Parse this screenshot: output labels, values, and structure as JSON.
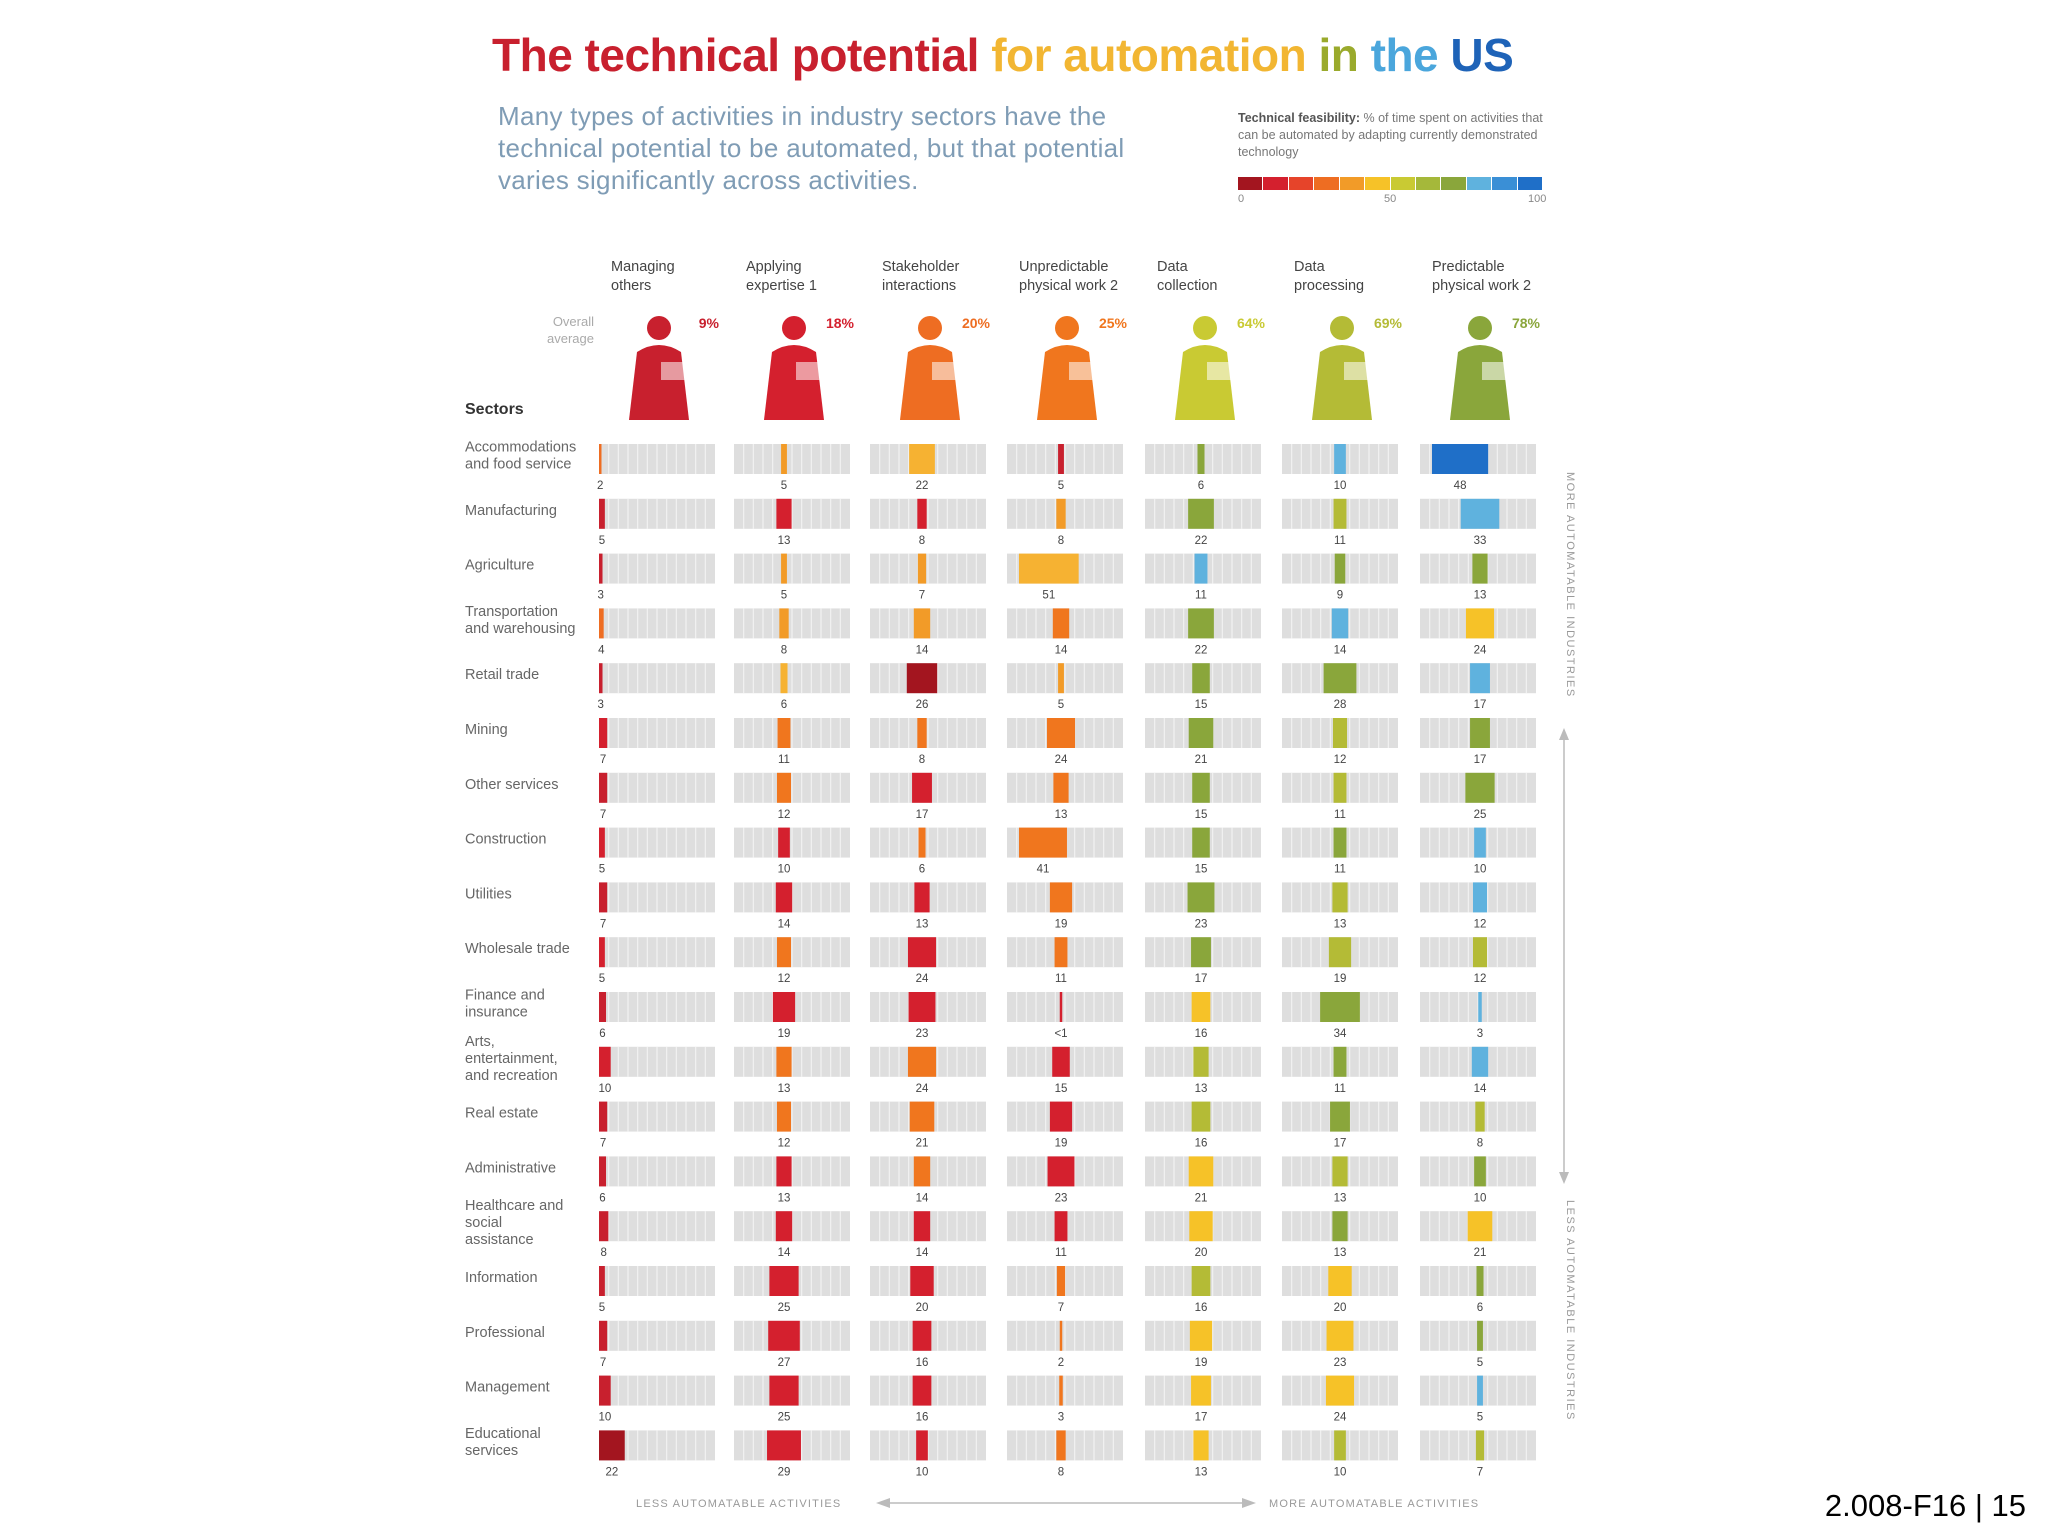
{
  "title_parts": [
    {
      "text": "The technical potential ",
      "color": "#c8202e"
    },
    {
      "text": "for automation ",
      "color": "#f2b632"
    },
    {
      "text": "in ",
      "color": "#9aaa2c"
    },
    {
      "text": "the ",
      "color": "#4aa6dc"
    },
    {
      "text": "US",
      "color": "#1e63b8"
    }
  ],
  "subtitle": "Many types of activities in industry sectors have the technical potential to be automated, but that potential varies significantly across activities.",
  "scale": {
    "label_bold": "Technical feasibility:",
    "label": " % of time spent on activities that can be automated by adapting currently demonstrated technology",
    "min": "0",
    "mid": "50",
    "max": "100",
    "colors": [
      "#a3151f",
      "#d4202e",
      "#e6442a",
      "#ee6d22",
      "#f29b28",
      "#f6c228",
      "#c9ca33",
      "#a5b83a",
      "#8aa63b",
      "#5fb2de",
      "#3a8fd6",
      "#1f6fc8"
    ]
  },
  "overall_average_label": "Overall average",
  "sectors_label": "Sectors",
  "right_axis": {
    "top": "MORE AUTOMATABLE INDUSTRIES",
    "bottom": "LESS AUTOMATABLE INDUSTRIES"
  },
  "bottom_axis": {
    "left": "LESS AUTOMATABLE ACTIVITIES",
    "right": "MORE AUTOMATABLE ACTIVITIES"
  },
  "page_number": "2.008-F16 | 15",
  "chart_data": {
    "type": "table",
    "value_unit": "%",
    "activities": [
      {
        "name": "Managing others",
        "sup": "",
        "average": "9%",
        "color": "#c8202e",
        "icon": "manager-icon"
      },
      {
        "name": "Applying expertise",
        "sup": "1",
        "average": "18%",
        "color": "#d4202e",
        "icon": "scientist-microscope-icon"
      },
      {
        "name": "Stakeholder interactions",
        "sup": "",
        "average": "20%",
        "color": "#ee6d22",
        "icon": "waiter-icon"
      },
      {
        "name": "Unpredictable physical work",
        "sup": "2",
        "average": "25%",
        "color": "#f0761e",
        "icon": "chainsaw-worker-icon"
      },
      {
        "name": "Data collection",
        "sup": "",
        "average": "64%",
        "color": "#c9ca33",
        "icon": "clerk-collecting-data-icon"
      },
      {
        "name": "Data processing",
        "sup": "",
        "average": "69%",
        "color": "#b4bb36",
        "icon": "worker-at-computer-icon"
      },
      {
        "name": "Predictable physical work",
        "sup": "2",
        "average": "78%",
        "color": "#8aa63b",
        "icon": "machine-operator-icon"
      }
    ],
    "sectors": [
      {
        "name": "Accommodations and food service",
        "values": [
          "2",
          "5",
          "22",
          "5",
          "6",
          "10",
          "48"
        ],
        "colors": [
          "#ee6d22",
          "#f29b28",
          "#f6b232",
          "#c8202e",
          "#8aa63b",
          "#5fb2de",
          "#1f6fc8"
        ]
      },
      {
        "name": "Manufacturing",
        "values": [
          "5",
          "13",
          "8",
          "8",
          "22",
          "11",
          "33"
        ],
        "colors": [
          "#c8202e",
          "#d4202e",
          "#d4202e",
          "#f29b28",
          "#8aa63b",
          "#b4bb36",
          "#5fb2de"
        ]
      },
      {
        "name": "Agriculture",
        "values": [
          "3",
          "5",
          "7",
          "51",
          "11",
          "9",
          "13"
        ],
        "colors": [
          "#c8202e",
          "#f29b28",
          "#f29b28",
          "#f6b232",
          "#5fb2de",
          "#8aa63b",
          "#8aa63b"
        ]
      },
      {
        "name": "Transportation and warehousing",
        "values": [
          "4",
          "8",
          "14",
          "14",
          "22",
          "14",
          "24"
        ],
        "colors": [
          "#ee6d22",
          "#f29b28",
          "#f29b28",
          "#f0761e",
          "#8aa63b",
          "#5fb2de",
          "#f6c228"
        ]
      },
      {
        "name": "Retail trade",
        "values": [
          "3",
          "6",
          "26",
          "5",
          "15",
          "28",
          "17"
        ],
        "colors": [
          "#c8202e",
          "#f6b232",
          "#a3151f",
          "#f29b28",
          "#8aa63b",
          "#8aa63b",
          "#5fb2de"
        ]
      },
      {
        "name": "Mining",
        "values": [
          "7",
          "11",
          "8",
          "24",
          "21",
          "12",
          "17"
        ],
        "colors": [
          "#d4202e",
          "#f0761e",
          "#f0761e",
          "#f0761e",
          "#8aa63b",
          "#b4bb36",
          "#8aa63b"
        ]
      },
      {
        "name": "Other services",
        "values": [
          "7",
          "12",
          "17",
          "13",
          "15",
          "11",
          "25"
        ],
        "colors": [
          "#c8202e",
          "#f0761e",
          "#d4202e",
          "#f0761e",
          "#8aa63b",
          "#b4bb36",
          "#8aa63b"
        ]
      },
      {
        "name": "Construction",
        "values": [
          "5",
          "10",
          "6",
          "41",
          "15",
          "11",
          "10"
        ],
        "colors": [
          "#d4202e",
          "#d4202e",
          "#f0761e",
          "#f0761e",
          "#8aa63b",
          "#8aa63b",
          "#5fb2de"
        ]
      },
      {
        "name": "Utilities",
        "values": [
          "7",
          "14",
          "13",
          "19",
          "23",
          "13",
          "12"
        ],
        "colors": [
          "#c8202e",
          "#d4202e",
          "#d4202e",
          "#f0761e",
          "#8aa63b",
          "#b4bb36",
          "#5fb2de"
        ]
      },
      {
        "name": "Wholesale trade",
        "values": [
          "5",
          "12",
          "24",
          "11",
          "17",
          "19",
          "12"
        ],
        "colors": [
          "#d4202e",
          "#f0761e",
          "#d4202e",
          "#f0761e",
          "#8aa63b",
          "#b4bb36",
          "#b4bb36"
        ]
      },
      {
        "name": "Finance and insurance",
        "values": [
          "6",
          "19",
          "23",
          "<1",
          "16",
          "34",
          "3"
        ],
        "colors": [
          "#c8202e",
          "#d4202e",
          "#d4202e",
          "#d4202e",
          "#f6c228",
          "#8aa63b",
          "#5fb2de"
        ]
      },
      {
        "name": "Arts, entertainment, and recreation",
        "values": [
          "10",
          "13",
          "24",
          "15",
          "13",
          "11",
          "14"
        ],
        "colors": [
          "#d4202e",
          "#f0761e",
          "#f0761e",
          "#d4202e",
          "#b4bb36",
          "#8aa63b",
          "#5fb2de"
        ]
      },
      {
        "name": "Real estate",
        "values": [
          "7",
          "12",
          "21",
          "19",
          "16",
          "17",
          "8"
        ],
        "colors": [
          "#c8202e",
          "#f0761e",
          "#f0761e",
          "#d4202e",
          "#b4bb36",
          "#8aa63b",
          "#b4bb36"
        ]
      },
      {
        "name": "Administrative",
        "values": [
          "6",
          "13",
          "14",
          "23",
          "21",
          "13",
          "10"
        ],
        "colors": [
          "#c8202e",
          "#d4202e",
          "#f0761e",
          "#d4202e",
          "#f6c228",
          "#b4bb36",
          "#8aa63b"
        ]
      },
      {
        "name": "Healthcare and social assistance",
        "values": [
          "8",
          "14",
          "14",
          "11",
          "20",
          "13",
          "21"
        ],
        "colors": [
          "#c8202e",
          "#d4202e",
          "#d4202e",
          "#d4202e",
          "#f6c228",
          "#8aa63b",
          "#f6c228"
        ]
      },
      {
        "name": "Information",
        "values": [
          "5",
          "25",
          "20",
          "7",
          "16",
          "20",
          "6"
        ],
        "colors": [
          "#c8202e",
          "#d4202e",
          "#d4202e",
          "#f0761e",
          "#b4bb36",
          "#f6c228",
          "#8aa63b"
        ]
      },
      {
        "name": "Professional",
        "values": [
          "7",
          "27",
          "16",
          "2",
          "19",
          "23",
          "5"
        ],
        "colors": [
          "#c8202e",
          "#d4202e",
          "#d4202e",
          "#f0761e",
          "#f6c228",
          "#f6c228",
          "#8aa63b"
        ]
      },
      {
        "name": "Management",
        "values": [
          "10",
          "25",
          "16",
          "3",
          "17",
          "24",
          "5"
        ],
        "colors": [
          "#c8202e",
          "#d4202e",
          "#d4202e",
          "#f0761e",
          "#f6c228",
          "#f6c228",
          "#5fb2de"
        ]
      },
      {
        "name": "Educational services",
        "values": [
          "22",
          "29",
          "10",
          "8",
          "13",
          "10",
          "7"
        ],
        "colors": [
          "#a3151f",
          "#d4202e",
          "#d4202e",
          "#f0761e",
          "#f6c228",
          "#b4bb36",
          "#b4bb36"
        ]
      }
    ]
  }
}
